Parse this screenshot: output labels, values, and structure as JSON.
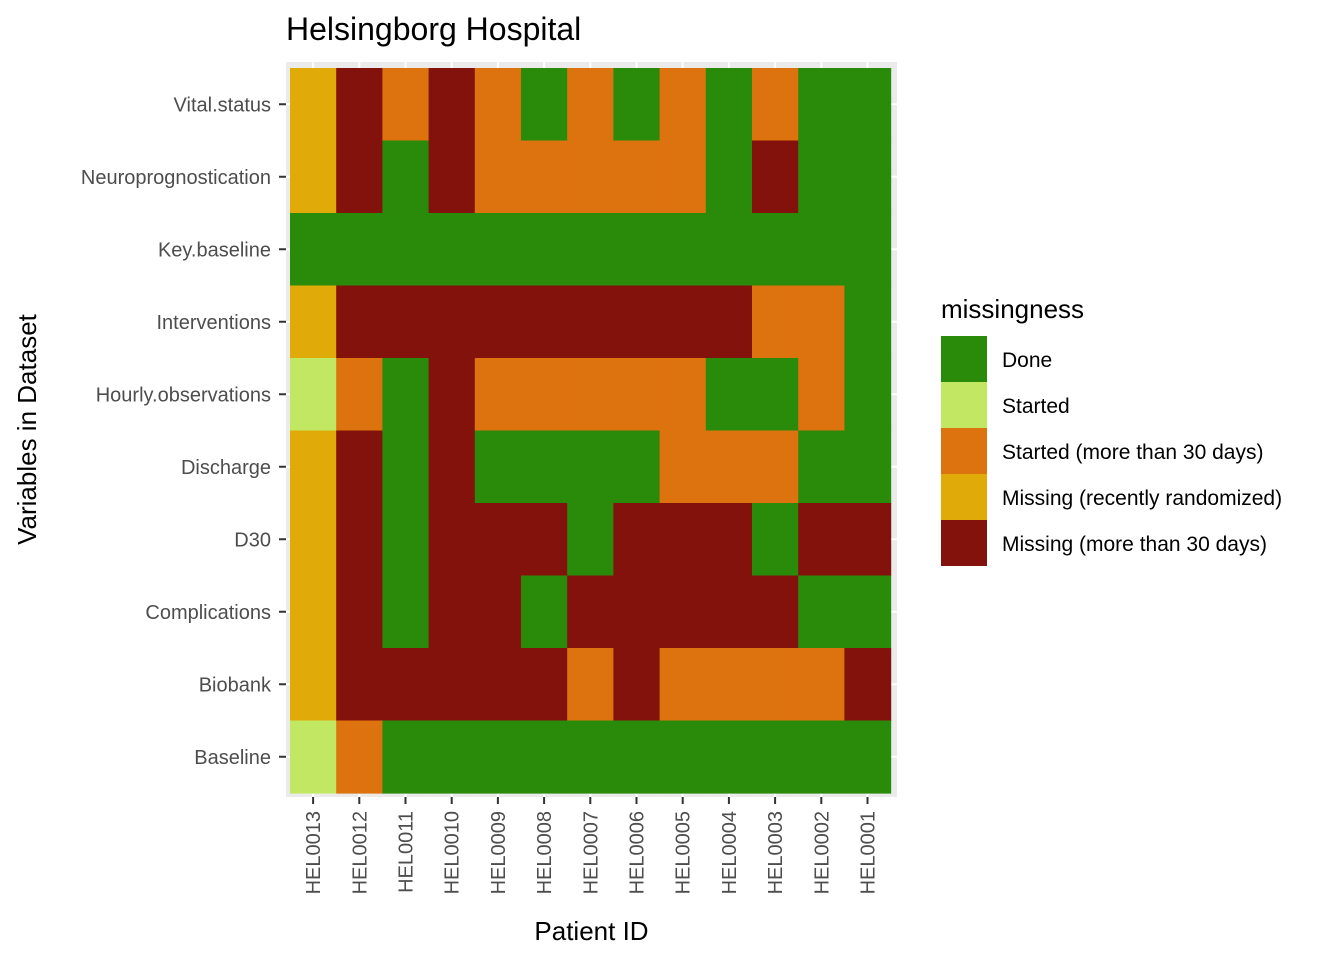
{
  "chart_data": {
    "type": "heatmap",
    "title": "Helsingborg Hospital",
    "xlabel": "Patient ID",
    "ylabel": "Variables in Dataset",
    "x": [
      "HEL0013",
      "HEL0012",
      "HEL0011",
      "HEL0010",
      "HEL0009",
      "HEL0008",
      "HEL0007",
      "HEL0006",
      "HEL0005",
      "HEL0004",
      "HEL0003",
      "HEL0002",
      "HEL0001"
    ],
    "y": [
      "Vital.status",
      "Neuroprognostication",
      "Key.baseline",
      "Interventions",
      "Hourly.observations",
      "Discharge",
      "D30",
      "Complications",
      "Biobank",
      "Baseline"
    ],
    "legend": {
      "title": "missingness",
      "position": "right",
      "items": [
        {
          "key": "D",
          "label": "Done",
          "color": "#2a8a0a"
        },
        {
          "key": "S",
          "label": "Started",
          "color": "#c2e863"
        },
        {
          "key": "O",
          "label": "Started (more than 30 days)",
          "color": "#dd730f"
        },
        {
          "key": "R",
          "label": "Missing (recently randomized)",
          "color": "#e0aa08"
        },
        {
          "key": "M",
          "label": "Missing (more than 30 days)",
          "color": "#83120c"
        }
      ]
    },
    "grid": true,
    "cells": [
      [
        "R",
        "M",
        "O",
        "M",
        "O",
        "D",
        "O",
        "D",
        "O",
        "D",
        "O",
        "D",
        "D"
      ],
      [
        "R",
        "M",
        "D",
        "M",
        "O",
        "O",
        "O",
        "O",
        "O",
        "D",
        "M",
        "D",
        "D"
      ],
      [
        "D",
        "D",
        "D",
        "D",
        "D",
        "D",
        "D",
        "D",
        "D",
        "D",
        "D",
        "D",
        "D"
      ],
      [
        "R",
        "M",
        "M",
        "M",
        "M",
        "M",
        "M",
        "M",
        "M",
        "M",
        "O",
        "O",
        "D"
      ],
      [
        "S",
        "O",
        "D",
        "M",
        "O",
        "O",
        "O",
        "O",
        "O",
        "D",
        "D",
        "O",
        "D"
      ],
      [
        "R",
        "M",
        "D",
        "M",
        "D",
        "D",
        "D",
        "D",
        "O",
        "O",
        "O",
        "D",
        "D"
      ],
      [
        "R",
        "M",
        "D",
        "M",
        "M",
        "M",
        "D",
        "M",
        "M",
        "M",
        "D",
        "M",
        "M"
      ],
      [
        "R",
        "M",
        "D",
        "M",
        "M",
        "D",
        "M",
        "M",
        "M",
        "M",
        "M",
        "D",
        "D"
      ],
      [
        "R",
        "M",
        "M",
        "M",
        "M",
        "M",
        "O",
        "M",
        "O",
        "O",
        "O",
        "O",
        "M"
      ],
      [
        "S",
        "O",
        "D",
        "D",
        "D",
        "D",
        "D",
        "D",
        "D",
        "D",
        "D",
        "D",
        "D"
      ]
    ]
  }
}
